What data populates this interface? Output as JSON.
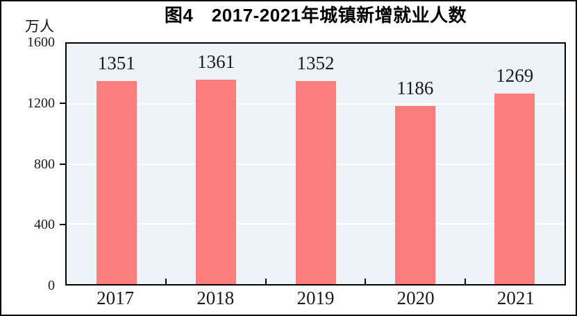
{
  "title": "图4　2017-2021年城镇新增就业人数",
  "unit_label": "万人",
  "chart_data": {
    "type": "bar",
    "title": "图4　2017-2021年城镇新增就业人数",
    "categories": [
      "2017",
      "2018",
      "2019",
      "2020",
      "2021"
    ],
    "values": [
      1351,
      1361,
      1352,
      1186,
      1269
    ],
    "bar_labels_shown": true,
    "xlabel": "",
    "ylabel": "万人",
    "ylim": [
      0,
      1600
    ],
    "y_ticks": [
      0,
      400,
      800,
      1200,
      1600
    ],
    "gridline_values": [
      400,
      800,
      1200
    ],
    "grid": true,
    "legend": false,
    "colors": {
      "bar": "#fc7d7d",
      "plot_background": "#edf3f7",
      "gridline": "#ffffff",
      "axis": "#000000",
      "text": "#1a1a24"
    }
  }
}
